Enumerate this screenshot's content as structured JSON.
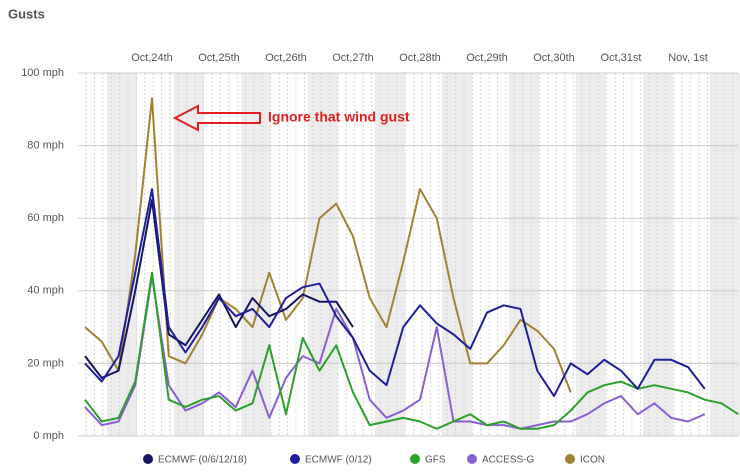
{
  "chart_data": {
    "type": "line",
    "title": "Gusts",
    "annotation": "Ignore that wind gust",
    "categories": [
      null,
      null,
      null,
      null,
      "Oct,24th",
      null,
      null,
      null,
      "Oct,25th",
      null,
      null,
      null,
      "Oct,26th",
      null,
      null,
      null,
      "Oct,27th",
      null,
      null,
      null,
      "Oct,28th",
      null,
      null,
      null,
      "Oct,29th",
      null,
      null,
      null,
      "Oct,30th",
      null,
      null,
      null,
      "Oct,31st",
      null,
      null,
      null,
      "Nov, 1st",
      null,
      null,
      null
    ],
    "ylim": [
      0,
      100
    ],
    "yticks": [
      {
        "value": 0,
        "label": "0 mph"
      },
      {
        "value": 20,
        "label": "20 mph"
      },
      {
        "value": 40,
        "label": "40 mph"
      },
      {
        "value": 60,
        "label": "60 mph"
      },
      {
        "value": 80,
        "label": "80 mph"
      },
      {
        "value": 100,
        "label": "100 mph"
      }
    ],
    "grid": true,
    "series": [
      {
        "name": "ECMWF (0/6/12/18)",
        "color": "#161660",
        "values": [
          22,
          16,
          18,
          40,
          65,
          28,
          25,
          32,
          39,
          30,
          38,
          33,
          35,
          39,
          37,
          37,
          30,
          null,
          null,
          null,
          null,
          null,
          null,
          null,
          null,
          null,
          null,
          null,
          null,
          null,
          null,
          null,
          null,
          null,
          null,
          null,
          null,
          null,
          null,
          null
        ]
      },
      {
        "name": "ECMWF (0/12)",
        "color": "#1f1f9e",
        "values": [
          20,
          15,
          22,
          45,
          68,
          30,
          23,
          30,
          38,
          33,
          35,
          30,
          38,
          41,
          42,
          33,
          27,
          18,
          14,
          30,
          36,
          31,
          28,
          24,
          34,
          36,
          35,
          18,
          11,
          20,
          17,
          21,
          18,
          13,
          21,
          21,
          19,
          13,
          null,
          null
        ]
      },
      {
        "name": "GFS",
        "color": "#2ca02c",
        "values": [
          10,
          4,
          5,
          15,
          45,
          10,
          8,
          10,
          11,
          7,
          9,
          25,
          6,
          27,
          18,
          25,
          12,
          3,
          4,
          5,
          4,
          2,
          4,
          6,
          3,
          4,
          2,
          2,
          3,
          7,
          12,
          14,
          15,
          13,
          14,
          13,
          12,
          10,
          9,
          6
        ]
      },
      {
        "name": "ACCESS-G",
        "color": "#8a5fd6",
        "values": [
          8,
          3,
          4,
          14,
          44,
          14,
          7,
          9,
          12,
          8,
          18,
          5,
          16,
          22,
          20,
          35,
          27,
          10,
          5,
          7,
          10,
          30,
          4,
          4,
          3,
          3,
          2,
          3,
          4,
          4,
          6,
          9,
          11,
          6,
          9,
          5,
          4,
          6,
          null,
          null
        ]
      },
      {
        "name": "ICON",
        "color": "#a08232",
        "values": [
          30,
          26,
          18,
          50,
          93,
          22,
          20,
          28,
          38,
          35,
          30,
          45,
          32,
          38,
          60,
          64,
          55,
          38,
          30,
          48,
          68,
          60,
          38,
          20,
          20,
          25,
          32,
          29,
          24,
          12,
          null,
          null,
          null,
          null,
          null,
          null,
          null,
          null,
          null,
          null
        ]
      }
    ]
  }
}
